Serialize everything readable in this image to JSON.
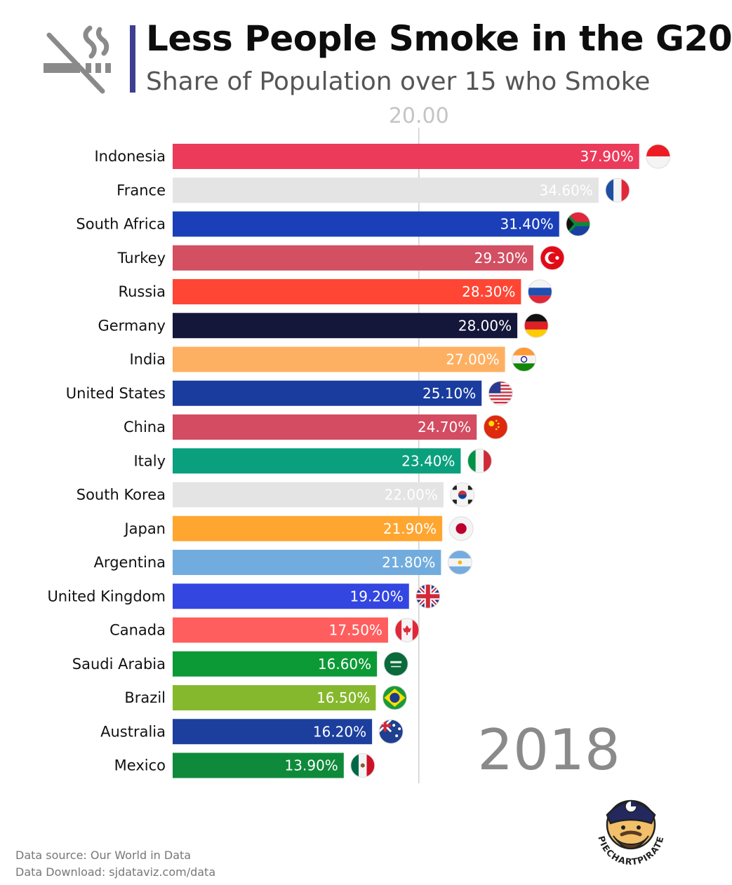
{
  "header": {
    "title": "Less People Smoke in the G20",
    "subtitle": "Share of Population over 15 who Smoke",
    "icon": "no-smoking-icon",
    "accent_color": "#3e3f8f"
  },
  "chart_data": {
    "type": "bar",
    "orientation": "horizontal",
    "year_label": "2018",
    "reference_tick": "20.00",
    "reference_value": 20,
    "xlim": [
      0,
      40
    ],
    "categories": [
      "Indonesia",
      "France",
      "South Africa",
      "Turkey",
      "Russia",
      "Germany",
      "India",
      "United States",
      "China",
      "Italy",
      "South Korea",
      "Japan",
      "Argentina",
      "United Kingdom",
      "Canada",
      "Saudi Arabia",
      "Brazil",
      "Australia",
      "Mexico"
    ],
    "values": [
      37.9,
      34.6,
      31.4,
      29.3,
      28.3,
      28.0,
      27.0,
      25.1,
      24.7,
      23.4,
      22.0,
      21.9,
      21.8,
      19.2,
      17.5,
      16.6,
      16.5,
      16.2,
      13.9
    ],
    "value_labels": [
      "37.90%",
      "34.60%",
      "31.40%",
      "29.30%",
      "28.30%",
      "28.00%",
      "27.00%",
      "25.10%",
      "24.70%",
      "23.40%",
      "22.00%",
      "21.90%",
      "21.80%",
      "19.20%",
      "17.50%",
      "16.60%",
      "16.50%",
      "16.20%",
      "13.90%"
    ],
    "colors": [
      "#ec3a5b",
      "#e4e4e4",
      "#1a3fb8",
      "#d34f62",
      "#ff4634",
      "#14163a",
      "#feb062",
      "#1a3c9f",
      "#d34c61",
      "#0aa07e",
      "#e4e4e4",
      "#ffa630",
      "#72acde",
      "#3346e0",
      "#ff5e5e",
      "#0c9a37",
      "#86b82d",
      "#1c3f9e",
      "#0f8a3b"
    ],
    "flags": [
      "indonesia-flag",
      "france-flag",
      "south-africa-flag",
      "turkey-flag",
      "russia-flag",
      "germany-flag",
      "india-flag",
      "united-states-flag",
      "china-flag",
      "italy-flag",
      "south-korea-flag",
      "japan-flag",
      "argentina-flag",
      "united-kingdom-flag",
      "canada-flag",
      "saudi-arabia-flag",
      "brazil-flag",
      "australia-flag",
      "mexico-flag"
    ]
  },
  "footer": {
    "source": "Data source: Our World in Data",
    "download": "Data Download: sjdataviz.com/data"
  },
  "logo": {
    "text": "PIECHARTPIRATE",
    "icon": "pirate-logo-icon"
  }
}
